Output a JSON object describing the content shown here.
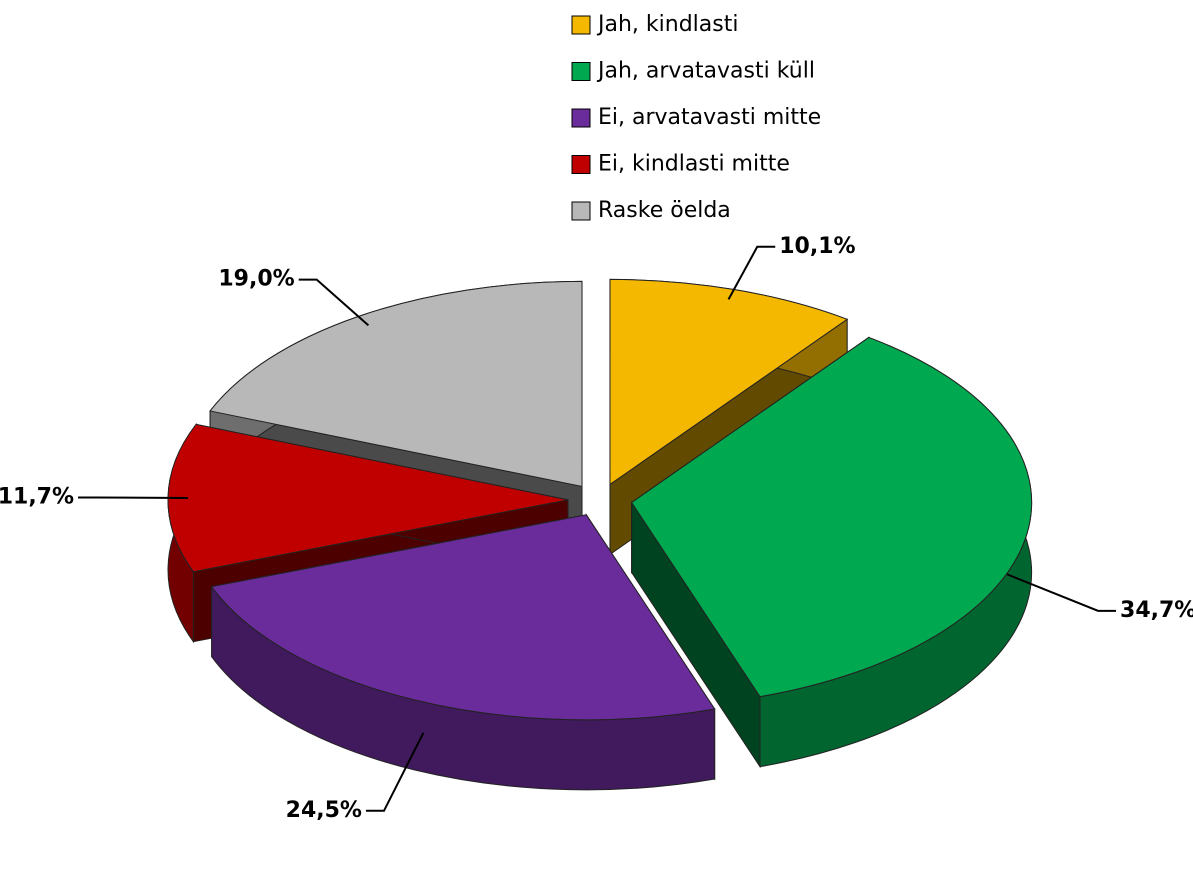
{
  "chart_data": {
    "type": "pie",
    "categories": [
      "Jah, kindlasti",
      "Jah, arvatavasti küll",
      "Ei, arvatavasti mitte",
      "Ei, kindlasti mitte",
      "Raske öelda"
    ],
    "values": [
      10.1,
      34.7,
      24.5,
      11.7,
      19.0
    ],
    "value_labels": [
      "10,1%",
      "34,7%",
      "24,5%",
      "11,7%",
      "19,0%"
    ],
    "colors": [
      "#f5b800",
      "#00a84f",
      "#6a2c9a",
      "#c00000",
      "#b8b8b8"
    ],
    "legend": "top"
  }
}
